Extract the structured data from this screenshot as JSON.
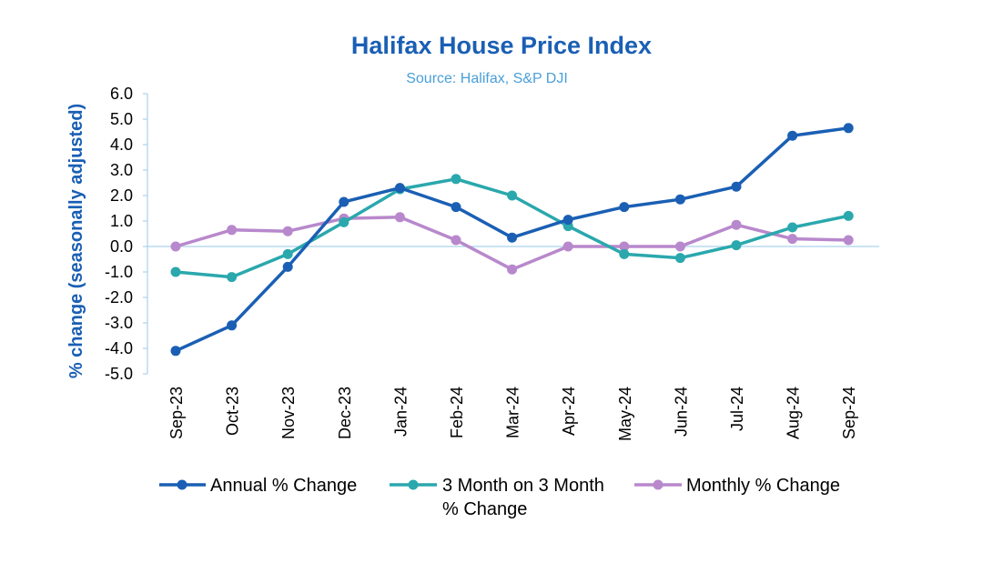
{
  "chart_data": {
    "type": "line",
    "title": "Halifax House Price Index",
    "subtitle": "Source: Halifax, S&P DJI",
    "ylabel": "% change (seasonally adjusted)",
    "xlabel": "",
    "ylim": [
      -5.0,
      6.0
    ],
    "yticks": [
      "6.0",
      "5.0",
      "4.0",
      "3.0",
      "2.0",
      "1.0",
      "0.0",
      "-1.0",
      "-2.0",
      "-3.0",
      "-4.0",
      "-5.0"
    ],
    "categories": [
      "Sep-23",
      "Oct-23",
      "Nov-23",
      "Dec-23",
      "Jan-24",
      "Feb-24",
      "Mar-24",
      "Apr-24",
      "May-24",
      "Jun-24",
      "Jul-24",
      "Aug-24",
      "Sep-24"
    ],
    "grid": false,
    "legend_position": "bottom",
    "series": [
      {
        "name": "Annual % Change",
        "color": "#1a5fb4",
        "values": [
          -4.1,
          -3.1,
          -0.8,
          1.75,
          2.3,
          1.55,
          0.35,
          1.05,
          1.55,
          1.85,
          2.35,
          4.35,
          4.65
        ]
      },
      {
        "name": "3 Month on 3 Month % Change",
        "color": "#2aa8ad",
        "values": [
          -1.0,
          -1.2,
          -0.3,
          0.95,
          2.25,
          2.65,
          2.0,
          0.8,
          -0.3,
          -0.45,
          0.05,
          0.75,
          1.2
        ]
      },
      {
        "name": "Monthly % Change",
        "color": "#b888cc",
        "values": [
          0.0,
          0.65,
          0.6,
          1.1,
          1.15,
          0.25,
          -0.9,
          0.0,
          0.0,
          0.0,
          0.85,
          0.3,
          0.25
        ]
      }
    ],
    "legend": {
      "item1": "Annual % Change",
      "item2_line1": "3 Month on 3 Month",
      "item2_line2": "% Change",
      "item3": "Monthly % Change"
    }
  }
}
